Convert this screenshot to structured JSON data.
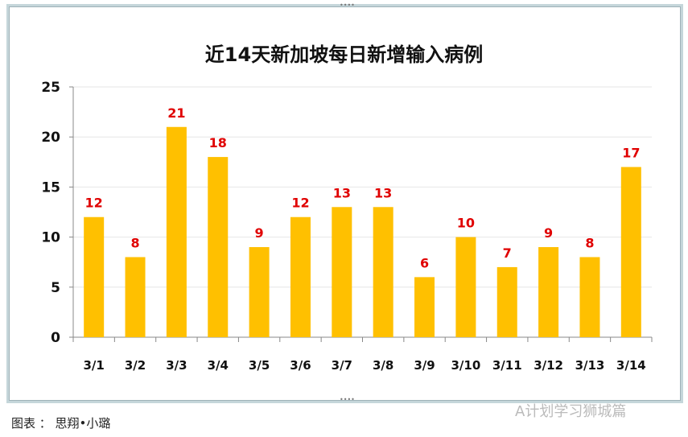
{
  "chart_data": {
    "type": "bar",
    "title": "近14天新加坡每日新增输入病例",
    "categories": [
      "3/1",
      "3/2",
      "3/3",
      "3/4",
      "3/5",
      "3/6",
      "3/7",
      "3/8",
      "3/9",
      "3/10",
      "3/11",
      "3/12",
      "3/13",
      "3/14"
    ],
    "values": [
      12,
      8,
      21,
      18,
      9,
      12,
      13,
      13,
      6,
      10,
      7,
      9,
      8,
      17
    ],
    "ylim": [
      0,
      25
    ],
    "yticks": [
      0,
      5,
      10,
      15,
      20,
      25
    ],
    "grid": true,
    "bar_color": "#FFC000",
    "label_color": "#E00000"
  },
  "caption": "图表 ： 思翔•小璐",
  "watermark": "A计划学习狮城篇"
}
